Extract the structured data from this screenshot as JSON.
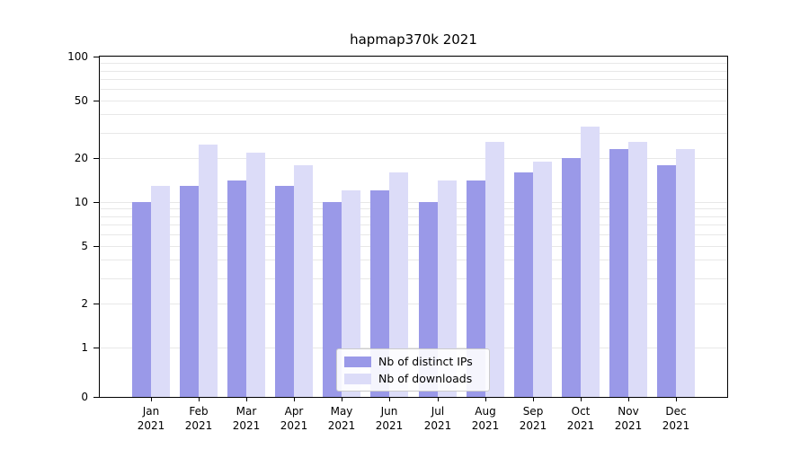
{
  "chart_data": {
    "type": "bar",
    "title": "hapmap370k 2021",
    "categories": [
      "Jan 2021",
      "Feb 2021",
      "Mar 2021",
      "Apr 2021",
      "May 2021",
      "Jun 2021",
      "Jul 2021",
      "Aug 2021",
      "Sep 2021",
      "Oct 2021",
      "Nov 2021",
      "Dec 2021"
    ],
    "series": [
      {
        "name": "Nb of distinct IPs",
        "color": "#9a99e8",
        "values": [
          10,
          13,
          14,
          13,
          10,
          12,
          10,
          14,
          16,
          20,
          23,
          18
        ]
      },
      {
        "name": "Nb of downloads",
        "color": "#dcdcf8",
        "values": [
          13,
          25,
          22,
          18,
          12,
          16,
          14,
          26,
          19,
          33,
          26,
          23
        ]
      }
    ],
    "xlabel": "",
    "ylabel": "",
    "y_scale": "symlog",
    "ylim": [
      0,
      100
    ],
    "y_ticks": [
      0,
      1,
      2,
      5,
      10,
      20,
      50,
      100
    ],
    "gridline_values": [
      1,
      2,
      3,
      4,
      5,
      6,
      7,
      8,
      9,
      10,
      20,
      30,
      40,
      50,
      60,
      70,
      80,
      90,
      100
    ],
    "grid_color": "#e8e8e8",
    "axis_color": "#000000",
    "legend_position": "lower center inside"
  }
}
